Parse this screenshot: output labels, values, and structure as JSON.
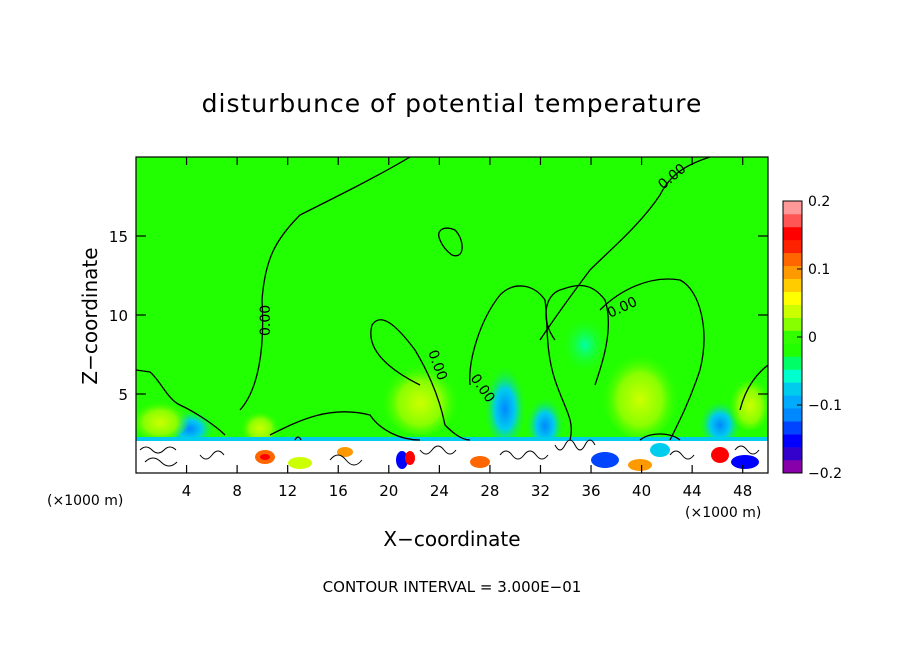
{
  "chart_data": {
    "type": "heatmap",
    "title": "disturbunce of potential temperature",
    "xlabel": "X−coordinate",
    "ylabel": "Z−coordinate",
    "x_unit_left": "(×1000 m)",
    "x_unit_right": "(×1000 m)",
    "footer": "CONTOUR INTERVAL = 3.000E−01",
    "xlim": [
      0,
      50
    ],
    "ylim": [
      0,
      20
    ],
    "x_ticks": [
      4,
      8,
      12,
      16,
      20,
      24,
      28,
      32,
      36,
      40,
      44,
      48
    ],
    "y_ticks": [
      5,
      10,
      15
    ],
    "contour_labels": [
      "0.00",
      "0.00",
      "0.00",
      "0.00",
      "0.00"
    ],
    "colorbar": {
      "vmin": -0.2,
      "vmax": 0.2,
      "tick_values": [
        0.2,
        0.1,
        0,
        -0.1,
        -0.2
      ],
      "tick_labels": [
        "0.2",
        "0.1",
        "0",
        "−0.1",
        "−0.2"
      ],
      "colors": [
        "#8800aa",
        "#3300cc",
        "#0000ff",
        "#0044ff",
        "#0088ff",
        "#00aaff",
        "#00ccee",
        "#00ffcc",
        "#00ff66",
        "#22ff00",
        "#33ff00",
        "#88ff00",
        "#ccff00",
        "#ffff00",
        "#ffcc00",
        "#ff9900",
        "#ff6600",
        "#ff2200",
        "#ff0000",
        "#ff5555",
        "#ff9999"
      ]
    },
    "background_value": 0
  }
}
